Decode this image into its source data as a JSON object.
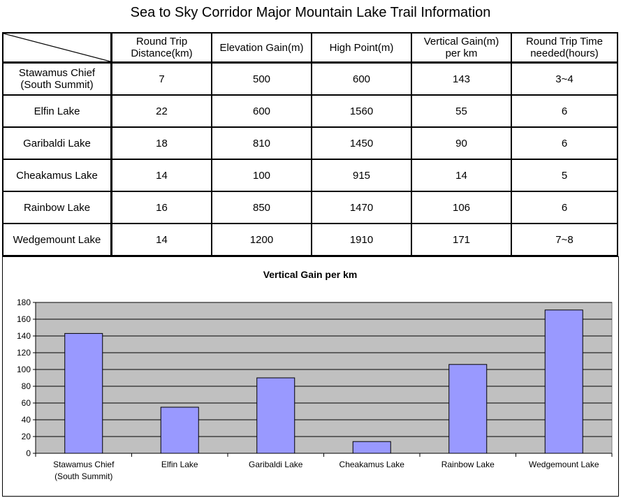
{
  "title": "Sea to Sky Corridor Major Mountain Lake Trail Information",
  "table": {
    "headers": [
      [
        "Round Trip",
        "Distance(km)"
      ],
      [
        "Elevation Gain(m)"
      ],
      [
        "High Point(m)"
      ],
      [
        "Vertical Gain(m)",
        "per km"
      ],
      [
        "Round Trip Time",
        "needed(hours)"
      ]
    ],
    "rows": [
      {
        "name": [
          "Stawamus Chief",
          "(South Summit)"
        ],
        "values": [
          "7",
          "500",
          "600",
          "143",
          "3~4"
        ]
      },
      {
        "name": [
          "Elfin Lake"
        ],
        "values": [
          "22",
          "600",
          "1560",
          "55",
          "6"
        ]
      },
      {
        "name": [
          "Garibaldi Lake"
        ],
        "values": [
          "18",
          "810",
          "1450",
          "90",
          "6"
        ]
      },
      {
        "name": [
          "Cheakamus Lake"
        ],
        "values": [
          "14",
          "100",
          "915",
          "14",
          "5"
        ]
      },
      {
        "name": [
          "Rainbow Lake"
        ],
        "values": [
          "16",
          "850",
          "1470",
          "106",
          "6"
        ]
      },
      {
        "name": [
          "Wedgemount Lake"
        ],
        "values": [
          "14",
          "1200",
          "1910",
          "171",
          "7~8"
        ]
      }
    ]
  },
  "chart_data": {
    "type": "bar",
    "title": "Vertical Gain per km",
    "categories": [
      [
        "Stawamus Chief",
        "(South Summit)"
      ],
      [
        "Elfin Lake"
      ],
      [
        "Garibaldi Lake"
      ],
      [
        "Cheakamus Lake"
      ],
      [
        "Rainbow Lake"
      ],
      [
        "Wedgemount Lake"
      ]
    ],
    "values": [
      143,
      55,
      90,
      14,
      106,
      171
    ],
    "ylim": [
      0,
      180
    ],
    "yticks": [
      "0",
      "20",
      "40",
      "60",
      "80",
      "100",
      "120",
      "140",
      "160",
      "180"
    ],
    "grid": true,
    "legend": "none",
    "bar_color": "#9999ff",
    "plot_background": "#c0c0c0"
  }
}
